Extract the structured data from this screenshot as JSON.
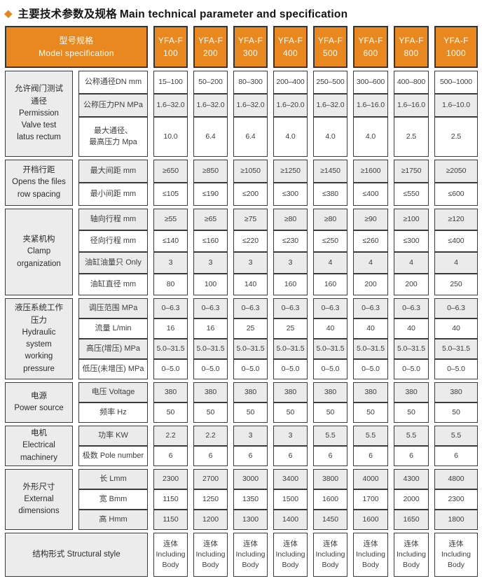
{
  "title": {
    "diamond_icon": "◆",
    "zh": "主要技术参数及规格",
    "en": "Main technical parameter and specification"
  },
  "colors": {
    "header_orange": "#e9881e",
    "row_alt_gray": "#ebebeb",
    "label_gray": "#ececec",
    "border": "#3a3a3a",
    "title_diamond": "#e8861e"
  },
  "header": {
    "model_zh": "型号规格",
    "model_en": "Model specification",
    "models": [
      {
        "l1": "YFA-F",
        "l2": "100"
      },
      {
        "l1": "YFA-F",
        "l2": "200"
      },
      {
        "l1": "YFA-F",
        "l2": "300"
      },
      {
        "l1": "YFA-F",
        "l2": "400"
      },
      {
        "l1": "YFA-F",
        "l2": "500"
      },
      {
        "l1": "YFA-F",
        "l2": "600"
      },
      {
        "l1": "YFA-F",
        "l2": "800"
      },
      {
        "l1": "YFA-F",
        "l2": "1000"
      }
    ]
  },
  "groups": [
    {
      "label_lines": [
        "允许阀门测试",
        "通径",
        "Permission",
        "Valve test",
        "latus rectum"
      ],
      "rows": [
        {
          "param": "公称通径DN mm",
          "values": [
            "15–100",
            "50–200",
            "80–300",
            "200–400",
            "250–500",
            "300–600",
            "400–800",
            "500–1000"
          ]
        },
        {
          "param": "公称压力PN MPa",
          "values": [
            "1.6–32.0",
            "1.6–32.0",
            "1.6–32.0",
            "1.6–20.0",
            "1.6–32.0",
            "1.6–16.0",
            "1.6–16.0",
            "1.6–10.0"
          ]
        },
        {
          "param_l1": "最大通径、",
          "param_l2": "最高压力 Mpa",
          "values": [
            "10.0",
            "6.4",
            "6.4",
            "4.0",
            "4.0",
            "4.0",
            "2.5",
            "2.5"
          ]
        }
      ]
    },
    {
      "label_lines": [
        "开档行距",
        "Opens the files",
        "row spacing"
      ],
      "rows": [
        {
          "param": "最大间距 mm",
          "values": [
            "≥650",
            "≥850",
            "≥1050",
            "≥1250",
            "≥1450",
            "≥1600",
            "≥1750",
            "≥2050"
          ]
        },
        {
          "param": "最小间距 mm",
          "values": [
            "≤105",
            "≤190",
            "≤200",
            "≤300",
            "≤380",
            "≤400",
            "≤550",
            "≤600"
          ]
        }
      ]
    },
    {
      "label_lines": [
        "夹紧机构",
        "Clamp",
        "organization"
      ],
      "rows": [
        {
          "param": "轴向行程 mm",
          "values": [
            "≥55",
            "≥65",
            "≥75",
            "≥80",
            "≥80",
            "≥90",
            "≥100",
            "≥120"
          ]
        },
        {
          "param": "径向行程 mm",
          "values": [
            "≤140",
            "≤160",
            "≤220",
            "≤230",
            "≤250",
            "≤260",
            "≤300",
            "≤400"
          ]
        },
        {
          "param": "油缸油量只 Only",
          "values": [
            "3",
            "3",
            "3",
            "3",
            "4",
            "4",
            "4",
            "4"
          ]
        },
        {
          "param": "油缸直径 mm",
          "values": [
            "80",
            "100",
            "140",
            "160",
            "160",
            "200",
            "200",
            "250"
          ]
        }
      ]
    },
    {
      "label_lines": [
        "液压系统工作",
        "压力",
        "Hydraulic",
        "system",
        "working",
        "pressure"
      ],
      "rows": [
        {
          "param": "调压范围 MPa",
          "values": [
            "0–6.3",
            "0–6.3",
            "0–6.3",
            "0–6.3",
            "0–6.3",
            "0–6.3",
            "0–6.3",
            "0–6.3"
          ]
        },
        {
          "param": "流量 L/min",
          "values": [
            "16",
            "16",
            "25",
            "25",
            "40",
            "40",
            "40",
            "40"
          ]
        },
        {
          "param": "高压(增压) MPa",
          "values": [
            "5.0–31.5",
            "5.0–31.5",
            "5.0–31.5",
            "5.0–31.5",
            "5.0–31.5",
            "5.0–31.5",
            "5.0–31.5",
            "5.0–31.5"
          ]
        },
        {
          "param": "低压(未增压) MPa",
          "values": [
            "0–5.0",
            "0–5.0",
            "0–5.0",
            "0–5.0",
            "0–5.0",
            "0–5.0",
            "0–5.0",
            "0–5.0"
          ]
        }
      ]
    },
    {
      "label_lines": [
        "电源",
        "Power source"
      ],
      "rows": [
        {
          "param": "电压 Voltage",
          "values": [
            "380",
            "380",
            "380",
            "380",
            "380",
            "380",
            "380",
            "380"
          ]
        },
        {
          "param": "频率 Hz",
          "values": [
            "50",
            "50",
            "50",
            "50",
            "50",
            "50",
            "50",
            "50"
          ]
        }
      ]
    },
    {
      "label_lines": [
        "电机",
        "Electrical",
        "machinery"
      ],
      "rows": [
        {
          "param": "功率 KW",
          "values": [
            "2.2",
            "2.2",
            "3",
            "3",
            "5.5",
            "5.5",
            "5.5",
            "5.5"
          ]
        },
        {
          "param": "极数 Pole number",
          "values": [
            "6",
            "6",
            "6",
            "6",
            "6",
            "6",
            "6",
            "6"
          ]
        }
      ]
    },
    {
      "label_lines": [
        "外形尺寸",
        "External",
        "dimensions"
      ],
      "rows": [
        {
          "param": "长 Lmm",
          "values": [
            "2300",
            "2700",
            "3000",
            "3400",
            "3800",
            "4000",
            "4300",
            "4800"
          ]
        },
        {
          "param": "宽 Bmm",
          "values": [
            "1150",
            "1250",
            "1350",
            "1500",
            "1600",
            "1700",
            "2000",
            "2300"
          ]
        },
        {
          "param": "高 Hmm",
          "values": [
            "1150",
            "1200",
            "1300",
            "1400",
            "1450",
            "1600",
            "1650",
            "1800"
          ]
        }
      ]
    }
  ],
  "footer": {
    "label": "结构形式 Structural style",
    "cells": [
      {
        "l1": "连体",
        "l2": "Including",
        "l3": "Body"
      },
      {
        "l1": "连体",
        "l2": "Including",
        "l3": "Body"
      },
      {
        "l1": "连体",
        "l2": "Including",
        "l3": "Body"
      },
      {
        "l1": "连体",
        "l2": "Including",
        "l3": "Body"
      },
      {
        "l1": "连体",
        "l2": "Including",
        "l3": "Body"
      },
      {
        "l1": "连体",
        "l2": "Including",
        "l3": "Body"
      },
      {
        "l1": "连体",
        "l2": "Including",
        "l3": "Body"
      },
      {
        "l1": "连体",
        "l2": "Including",
        "l3": "Body"
      }
    ]
  }
}
